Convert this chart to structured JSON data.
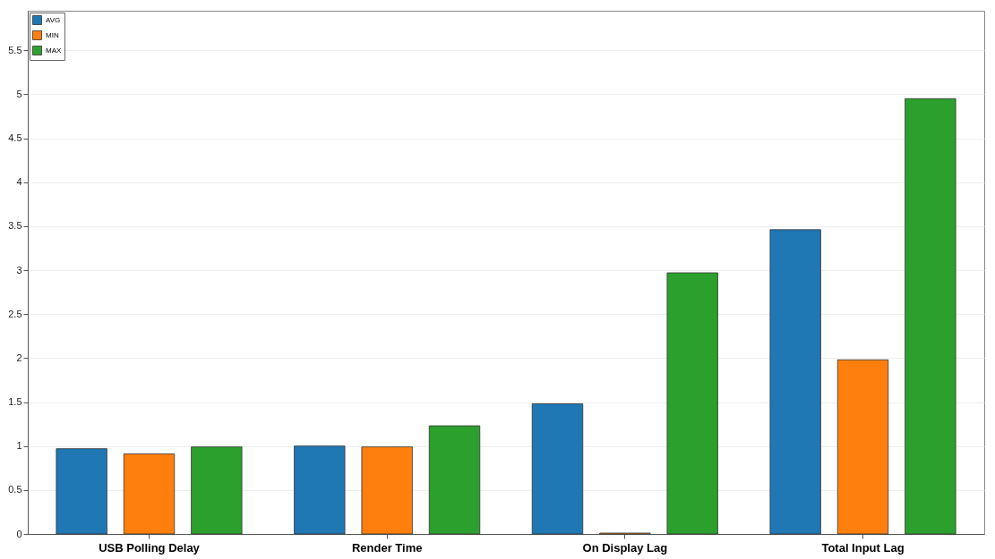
{
  "chart_data": {
    "type": "bar",
    "categories": [
      "USB Polling Delay",
      "Render Time",
      "On Display Lag",
      "Total Input Lag"
    ],
    "series": [
      {
        "name": "AVG",
        "color": "#1f77b4",
        "values": [
          0.97,
          1.0,
          1.48,
          3.46
        ]
      },
      {
        "name": "MIN",
        "color": "#ff7f0e",
        "values": [
          0.91,
          0.99,
          0.01,
          1.98
        ]
      },
      {
        "name": "MAX",
        "color": "#2ca02c",
        "values": [
          0.99,
          1.23,
          2.97,
          4.95
        ]
      }
    ],
    "ylim": [
      0,
      5.95
    ],
    "yticks": [
      0,
      0.5,
      1,
      1.5,
      2,
      2.5,
      3,
      3.5,
      4,
      4.5,
      5,
      5.5
    ],
    "grid": "y",
    "legend": "top left"
  }
}
